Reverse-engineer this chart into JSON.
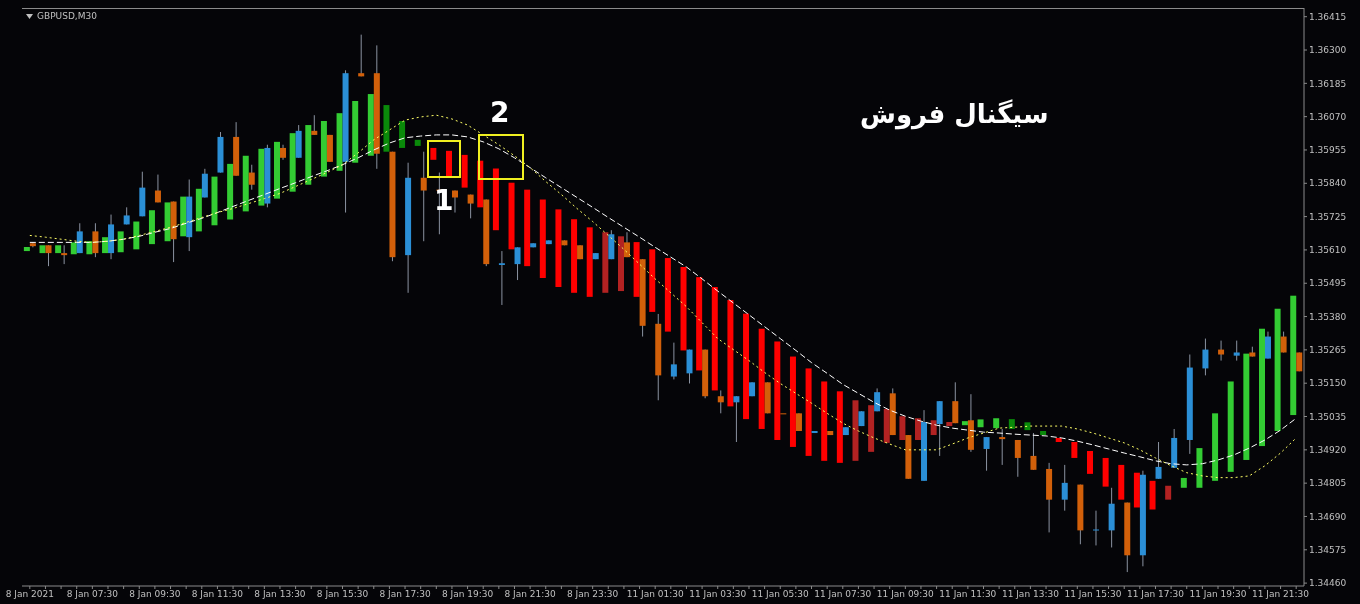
{
  "chart_data": {
    "type": "candlestick",
    "title": "GBPUSD,M30",
    "categories": [
      "8 Jan 2021",
      null,
      null,
      null,
      "8 Jan 07:30",
      null,
      null,
      null,
      "8 Jan 09:30",
      null,
      null,
      null,
      "8 Jan 11:30",
      null,
      null,
      null,
      "8 Jan 13:30",
      null,
      null,
      null,
      "8 Jan 15:30",
      null,
      null,
      null,
      "8 Jan 17:30",
      null,
      null,
      null,
      "8 Jan 19:30",
      null,
      null,
      null,
      "8 Jan 21:30",
      null,
      null,
      null,
      "8 Jan 23:30",
      null,
      null,
      null,
      "11 Jan 01:30",
      null,
      null,
      null,
      "11 Jan 03:30",
      null,
      null,
      null,
      "11 Jan 05:30",
      null,
      null,
      null,
      "11 Jan 07:30",
      null,
      null,
      null,
      "11 Jan 09:30",
      null,
      null,
      null,
      "11 Jan 11:30",
      null,
      null,
      null,
      "11 Jan 13:30",
      null,
      null,
      null,
      "11 Jan 15:30",
      null,
      null,
      null,
      "11 Jan 17:30",
      null,
      null,
      null,
      "11 Jan 19:30",
      null,
      null,
      null,
      "11 Jan 21:30",
      null
    ],
    "ohlc": [
      [
        1.35633,
        1.35636,
        1.35619,
        1.35623
      ],
      [
        1.35626,
        1.35626,
        1.35554,
        1.35599
      ],
      [
        1.35599,
        1.35626,
        1.35561,
        1.35592
      ],
      [
        1.35599,
        1.35702,
        1.35599,
        1.35674
      ],
      [
        1.35674,
        1.35702,
        1.35585,
        1.35599
      ],
      [
        1.35599,
        1.35732,
        1.35578,
        1.35698
      ],
      [
        1.35698,
        1.35757,
        1.35698,
        1.35729
      ],
      [
        1.35726,
        1.3588,
        1.35726,
        1.35825
      ],
      [
        1.35815,
        1.3587,
        1.35774,
        1.35774
      ],
      [
        1.35777,
        1.35777,
        1.35568,
        1.35647
      ],
      [
        1.35654,
        1.35853,
        1.35606,
        1.35794
      ],
      [
        1.35791,
        1.3589,
        1.35791,
        1.35873
      ],
      [
        1.35877,
        1.36017,
        1.35877,
        1.36
      ],
      [
        1.36,
        1.36051,
        1.35866,
        1.35866
      ],
      [
        1.35877,
        1.35904,
        1.35818,
        1.35835
      ],
      [
        1.3577,
        1.35973,
        1.35757,
        1.35962
      ],
      [
        1.35962,
        1.35973,
        1.35921,
        1.35928
      ],
      [
        1.35928,
        1.36041,
        1.35928,
        1.36021
      ],
      [
        1.36021,
        1.36075,
        1.36007,
        1.36007
      ],
      [
        1.36007,
        1.36007,
        1.35914,
        1.35914
      ],
      [
        1.35914,
        1.3623,
        1.35739,
        1.3622
      ],
      [
        1.3622,
        1.36353,
        1.36209,
        1.36209
      ],
      [
        1.3622,
        1.36316,
        1.3589,
        1.35942
      ],
      [
        1.35949,
        1.35949,
        1.35571,
        1.35585
      ],
      [
        1.35592,
        1.35911,
        1.35462,
        1.35859
      ],
      [
        1.35859,
        1.35949,
        1.3564,
        1.35815
      ],
      [
        1.35818,
        1.35877,
        1.35664,
        1.35815
      ],
      [
        1.35815,
        1.35815,
        1.35739,
        1.35791
      ],
      [
        1.35801,
        1.35801,
        1.35719,
        1.3577
      ],
      [
        1.35784,
        1.35784,
        1.35554,
        1.35561
      ],
      [
        1.35558,
        1.35606,
        1.3542,
        1.35564
      ],
      [
        1.35561,
        1.35619,
        1.35506,
        1.35619
      ],
      [
        1.35619,
        1.35633,
        1.35619,
        1.35633
      ],
      [
        1.3563,
        1.35643,
        1.3563,
        1.35643
      ],
      [
        1.35643,
        1.35643,
        1.35626,
        1.35626
      ],
      [
        1.35626,
        1.35626,
        1.35578,
        1.35578
      ],
      [
        1.35578,
        1.35599,
        1.35578,
        1.35599
      ],
      [
        1.35578,
        1.35678,
        1.35578,
        1.35664
      ],
      [
        1.35636,
        1.35671,
        1.35585,
        1.35585
      ],
      [
        1.35578,
        1.35578,
        1.35311,
        1.35348
      ],
      [
        1.35355,
        1.35389,
        1.35091,
        1.35177
      ],
      [
        1.35173,
        1.3529,
        1.35163,
        1.35215
      ],
      [
        1.35184,
        1.35266,
        1.35149,
        1.35266
      ],
      [
        1.35266,
        1.35266,
        1.35098,
        1.35105
      ],
      [
        1.35105,
        1.35125,
        1.35046,
        1.35084
      ],
      [
        1.35084,
        1.35105,
        1.34947,
        1.35105
      ],
      [
        1.35105,
        1.35153,
        1.35105,
        1.35153
      ],
      [
        1.35153,
        1.35153,
        1.35046,
        1.35046
      ],
      [
        1.35046,
        1.35046,
        1.35043,
        1.35043
      ],
      [
        1.35046,
        1.35046,
        1.34985,
        1.34985
      ],
      [
        1.34978,
        1.34985,
        1.34978,
        1.34985
      ],
      [
        1.34985,
        1.34985,
        1.34971,
        1.34971
      ],
      [
        1.34971,
        1.34998,
        1.34971,
        1.34998
      ],
      [
        1.35002,
        1.35053,
        1.35002,
        1.35053
      ],
      [
        1.35053,
        1.35132,
        1.35053,
        1.35119
      ],
      [
        1.35115,
        1.35132,
        1.34971,
        1.34971
      ],
      [
        1.34971,
        1.34971,
        1.3482,
        1.3482
      ],
      [
        1.34813,
        1.35057,
        1.34813,
        1.35016
      ],
      [
        1.35009,
        1.35088,
        1.34899,
        1.35088
      ],
      [
        1.35088,
        1.35153,
        1.35012,
        1.35012
      ],
      [
        1.35022,
        1.35112,
        1.34913,
        1.3492
      ],
      [
        1.34923,
        1.34964,
        1.34848,
        1.34964
      ],
      [
        1.34964,
        1.34992,
        1.34868,
        1.34957
      ],
      [
        1.34954,
        1.34954,
        1.34827,
        1.34892
      ],
      [
        1.34899,
        1.34978,
        1.34851,
        1.34851
      ],
      [
        1.34854,
        1.34875,
        1.34635,
        1.34748
      ],
      [
        1.34748,
        1.34868,
        1.3471,
        1.34806
      ],
      [
        1.348,
        1.348,
        1.34594,
        1.34642
      ],
      [
        1.34642,
        1.3471,
        1.3459,
        1.34645
      ],
      [
        1.34642,
        1.34789,
        1.34583,
        1.34734
      ],
      [
        1.34738,
        1.34738,
        1.34498,
        1.34556
      ],
      [
        1.34556,
        1.34848,
        1.34518,
        1.34834
      ],
      [
        1.3482,
        1.34947,
        1.3482,
        1.34861
      ],
      [
        1.34858,
        1.34992,
        1.34858,
        1.34961
      ],
      [
        1.34954,
        1.35249,
        1.34906,
        1.35204
      ],
      [
        1.35201,
        1.35304,
        1.35177,
        1.35266
      ],
      [
        1.35266,
        1.35297,
        1.35228,
        1.35249
      ],
      [
        1.35245,
        1.35297,
        1.35228,
        1.35256
      ],
      [
        1.35256,
        1.35276,
        1.35242,
        1.35242
      ],
      [
        1.35235,
        1.35328,
        1.35235,
        1.35311
      ],
      [
        1.35311,
        1.35328,
        1.35256,
        1.35256
      ],
      [
        1.35256,
        1.35256,
        1.35191,
        1.35191
      ]
    ],
    "colors": [
      "#d2600a",
      "#d2600a",
      "#d2600a",
      "#2b8fd6",
      "#d2600a",
      "#2b8fd6",
      "#2b8fd6",
      "#2b8fd6",
      "#d2600a",
      "#d2600a",
      "#2b8fd6",
      "#2b8fd6",
      "#2b8fd6",
      "#d2600a",
      "#d2600a",
      "#2b8fd6",
      "#d2600a",
      "#2b8fd6",
      "#d2600a",
      "#d2600a",
      "#2b8fd6",
      "#d2600a",
      "#d2600a",
      "#d2600a",
      "#2b8fd6",
      "#d2600a",
      "#d2600a",
      "#d2600a",
      "#d2600a",
      "#d2600a",
      "#2b8fd6",
      "#2b8fd6",
      "#2b8fd6",
      "#2b8fd6",
      "#d2600a",
      "#d2600a",
      "#2b8fd6",
      "#2b8fd6",
      "#d2600a",
      "#d2600a",
      "#d2600a",
      "#2b8fd6",
      "#2b8fd6",
      "#d2600a",
      "#d2600a",
      "#2b8fd6",
      "#2b8fd6",
      "#d2600a",
      "#d2600a",
      "#d2600a",
      "#2b8fd6",
      "#d2600a",
      "#2b8fd6",
      "#2b8fd6",
      "#2b8fd6",
      "#d2600a",
      "#d2600a",
      "#2b8fd6",
      "#2b8fd6",
      "#d2600a",
      "#d2600a",
      "#2b8fd6",
      "#d2600a",
      "#d2600a",
      "#d2600a",
      "#d2600a",
      "#2b8fd6",
      "#d2600a",
      "#2b8fd6",
      "#2b8fd6",
      "#d2600a",
      "#2b8fd6",
      "#2b8fd6",
      "#2b8fd6",
      "#2b8fd6",
      "#2b8fd6",
      "#d2600a",
      "#2b8fd6",
      "#d2600a",
      "#2b8fd6",
      "#d2600a",
      "#d2600a"
    ],
    "series": [
      {
        "type": "line",
        "color": "#ffffff",
        "line_style": "dashed",
        "values": [
          1.35636,
          1.35636,
          1.35636,
          1.35636,
          1.35636,
          1.3564,
          1.35647,
          1.35657,
          1.35671,
          1.35684,
          1.35702,
          1.35719,
          1.35739,
          1.3576,
          1.35781,
          1.35801,
          1.35822,
          1.35842,
          1.35863,
          1.35883,
          1.35904,
          1.35928,
          1.35955,
          1.35979,
          1.35997,
          1.36003,
          1.36007,
          1.36007,
          1.36,
          1.35983,
          1.35959,
          1.35928,
          1.35894,
          1.35859,
          1.35825,
          1.35791,
          1.35757,
          1.35722,
          1.35688,
          1.35654,
          1.35619,
          1.35585,
          1.35551,
          1.3551,
          1.35468,
          1.35427,
          1.35386,
          1.35345,
          1.35304,
          1.35263,
          1.35221,
          1.35184,
          1.35146,
          1.35115,
          1.35084,
          1.35057,
          1.35036,
          1.35019,
          1.35005,
          1.34995,
          1.34988,
          1.34981,
          1.34978,
          1.34974,
          1.34971,
          1.34968,
          1.34961,
          1.3495,
          1.34937,
          1.34923,
          1.34909,
          1.34896,
          1.34882,
          1.34872,
          1.34868,
          1.34872,
          1.34885,
          1.34902,
          1.34926,
          1.34954,
          1.34988,
          1.35029
        ]
      },
      {
        "type": "line",
        "color": "#ffff66",
        "line_style": "dotted",
        "values": [
          1.3566,
          1.35654,
          1.35647,
          1.3564,
          1.35636,
          1.3564,
          1.35647,
          1.3566,
          1.35674,
          1.35688,
          1.35705,
          1.35722,
          1.35739,
          1.35753,
          1.3577,
          1.35787,
          1.35805,
          1.35829,
          1.35853,
          1.35877,
          1.35904,
          1.35945,
          1.3599,
          1.36024,
          1.36058,
          1.36069,
          1.36075,
          1.36062,
          1.36041,
          1.36007,
          1.35973,
          1.35935,
          1.35894,
          1.35846,
          1.35801,
          1.35753,
          1.35708,
          1.3566,
          1.35612,
          1.35561,
          1.3551,
          1.35462,
          1.35414,
          1.35359,
          1.35304,
          1.35266,
          1.35228,
          1.35187,
          1.35149,
          1.35115,
          1.35081,
          1.35046,
          1.35012,
          1.34985,
          1.34961,
          1.3494,
          1.3492,
          1.3492,
          1.3492,
          1.3494,
          1.34961,
          1.34978,
          1.34995,
          1.34998,
          1.35002,
          1.35002,
          1.35002,
          1.34992,
          1.34978,
          1.34961,
          1.34944,
          1.3492,
          1.34892,
          1.34865,
          1.34841,
          1.3483,
          1.34824,
          1.34824,
          1.3483,
          1.34865,
          1.34909,
          1.34961
        ]
      },
      {
        "type": "bar",
        "base": [
          1.35606,
          1.35599,
          1.35599,
          1.35595,
          1.35595,
          1.35599,
          1.35602,
          1.35612,
          1.3563,
          1.3564,
          1.35657,
          1.35674,
          1.35695,
          1.35715,
          1.35743,
          1.35763,
          1.35787,
          1.35811,
          1.35835,
          1.35863,
          1.35883,
          1.35911,
          1.35935,
          1.35949,
          1.35962,
          1.35969,
          1.35921,
          1.35863,
          1.35825,
          1.35757,
          1.35678,
          1.35612,
          1.35554,
          1.35513,
          1.35482,
          1.35462,
          1.35448,
          1.35462,
          1.35468,
          1.35448,
          1.35396,
          1.35328,
          1.35263,
          1.35194,
          1.35125,
          1.3507,
          1.35026,
          1.34992,
          1.34954,
          1.3493,
          1.34899,
          1.34882,
          1.34875,
          1.34882,
          1.34913,
          1.34944,
          1.34954,
          1.34954,
          1.34971,
          1.35002,
          1.35005,
          1.34998,
          1.34995,
          1.34992,
          1.34988,
          1.34971,
          1.34947,
          1.34892,
          1.34837,
          1.34793,
          1.34748,
          1.34721,
          1.34714,
          1.34748,
          1.34789,
          1.34789,
          1.34813,
          1.34844,
          1.34885,
          1.34933,
          1.34985,
          1.3504
        ],
        "values": [
          0.00014,
          0.00027,
          0.00027,
          0.00041,
          0.00045,
          0.00055,
          0.00072,
          0.00096,
          0.00117,
          0.00134,
          0.00137,
          0.00147,
          0.00168,
          0.00192,
          0.00192,
          0.00196,
          0.00196,
          0.00202,
          0.00206,
          0.00192,
          0.00199,
          0.00213,
          0.00213,
          0.00161,
          0.00093,
          0.00021,
          0.00041,
          0.00089,
          0.00113,
          0.00161,
          0.00213,
          0.0023,
          0.00264,
          0.00271,
          0.00268,
          0.00254,
          0.0024,
          0.00209,
          0.00189,
          0.00189,
          0.00216,
          0.00254,
          0.00288,
          0.00322,
          0.00357,
          0.00367,
          0.00364,
          0.00346,
          0.0034,
          0.00312,
          0.00302,
          0.00274,
          0.00247,
          0.00209,
          0.00161,
          0.00117,
          0.00082,
          0.00075,
          0.00051,
          0.00014,
          0.00014,
          0.00027,
          0.00034,
          0.00034,
          0.00027,
          0.00014,
          0.00014,
          0.00055,
          0.00079,
          0.00099,
          0.0012,
          0.0012,
          0.00099,
          0.00048,
          0.00034,
          0.00137,
          0.00233,
          0.00312,
          0.00367,
          0.00405,
          0.00422,
          0.00412
        ],
        "colors": [
          "#33cc33",
          "#33cc33",
          "#33cc33",
          "#33cc33",
          "#33cc33",
          "#33cc33",
          "#33cc33",
          "#33cc33",
          "#33cc33",
          "#33cc33",
          "#33cc33",
          "#33cc33",
          "#33cc33",
          "#33cc33",
          "#33cc33",
          "#33cc33",
          "#33cc33",
          "#33cc33",
          "#33cc33",
          "#33cc33",
          "#33cc33",
          "#33cc33",
          "#33cc33",
          "#0a8a0a",
          "#0a8a0a",
          "#0a8a0a",
          "#ff0000",
          "#ff0000",
          "#ff0000",
          "#ff0000",
          "#ff0000",
          "#ff0000",
          "#ff0000",
          "#ff0000",
          "#ff0000",
          "#ff0000",
          "#ff0000",
          "#b22222",
          "#b22222",
          "#ff0000",
          "#ff0000",
          "#ff0000",
          "#ff0000",
          "#ff0000",
          "#ff0000",
          "#ff0000",
          "#ff0000",
          "#ff0000",
          "#ff0000",
          "#ff0000",
          "#ff0000",
          "#ff0000",
          "#ff0000",
          "#b22222",
          "#b22222",
          "#b22222",
          "#b22222",
          "#b22222",
          "#b22222",
          "#b22222",
          "#33cc33",
          "#33cc33",
          "#33cc33",
          "#0a8a0a",
          "#0a8a0a",
          "#0a8a0a",
          "#ff0000",
          "#ff0000",
          "#ff0000",
          "#ff0000",
          "#ff0000",
          "#ff0000",
          "#ff0000",
          "#b22222",
          "#33cc33",
          "#33cc33",
          "#33cc33",
          "#33cc33",
          "#33cc33",
          "#33cc33",
          "#33cc33",
          "#33cc33"
        ]
      }
    ],
    "ylim": [
      1.3445,
      1.36445
    ],
    "yticks": [
      1.36415,
      {
        "value": 1.363,
        "label": "1.36300"
      },
      1.36185,
      {
        "value": 1.3607,
        "label": "1.36070"
      },
      1.35955,
      {
        "value": 1.3584,
        "label": "1.35840"
      },
      1.35725,
      {
        "value": 1.3561,
        "label": "1.35610"
      },
      1.35495,
      {
        "value": 1.3538,
        "label": "1.35380"
      },
      1.35265,
      {
        "value": 1.3515,
        "label": "1.35150"
      },
      1.35035,
      {
        "value": 1.3492,
        "label": "1.34920"
      },
      1.34805,
      {
        "value": 1.3469,
        "label": "1.34690"
      },
      1.34575,
      {
        "value": 1.3446,
        "label": "1.34460"
      }
    ],
    "annotations": [
      "سیگنال فروش",
      "1",
      "2"
    ]
  }
}
